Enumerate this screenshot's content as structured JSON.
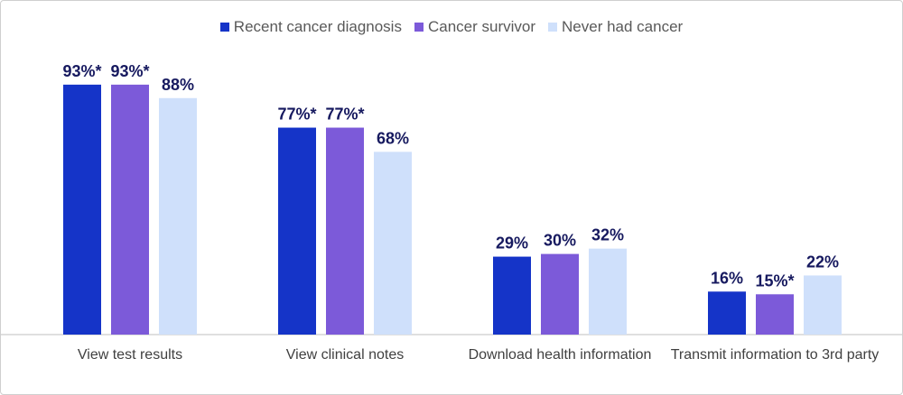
{
  "chart_data": {
    "type": "bar",
    "categories": [
      "View test results",
      "View clinical notes",
      "Download health information",
      "Transmit information to 3rd party"
    ],
    "series": [
      {
        "name": "Recent cancer diagnosis",
        "color": "#1534c8",
        "values": [
          93,
          77,
          29,
          16
        ],
        "value_labels": [
          "93%*",
          "77%*",
          "29%",
          "16%"
        ]
      },
      {
        "name": "Cancer survivor",
        "color": "#7c5ad9",
        "values": [
          93,
          77,
          30,
          15
        ],
        "value_labels": [
          "93%*",
          "77%*",
          "30%",
          "15%*"
        ]
      },
      {
        "name": "Never had cancer",
        "color": "#cfe0fb",
        "values": [
          88,
          68,
          32,
          22
        ],
        "value_labels": [
          "88%",
          "68%",
          "32%",
          "22%"
        ]
      }
    ],
    "ylim": [
      0,
      100
    ],
    "legend": "top"
  }
}
